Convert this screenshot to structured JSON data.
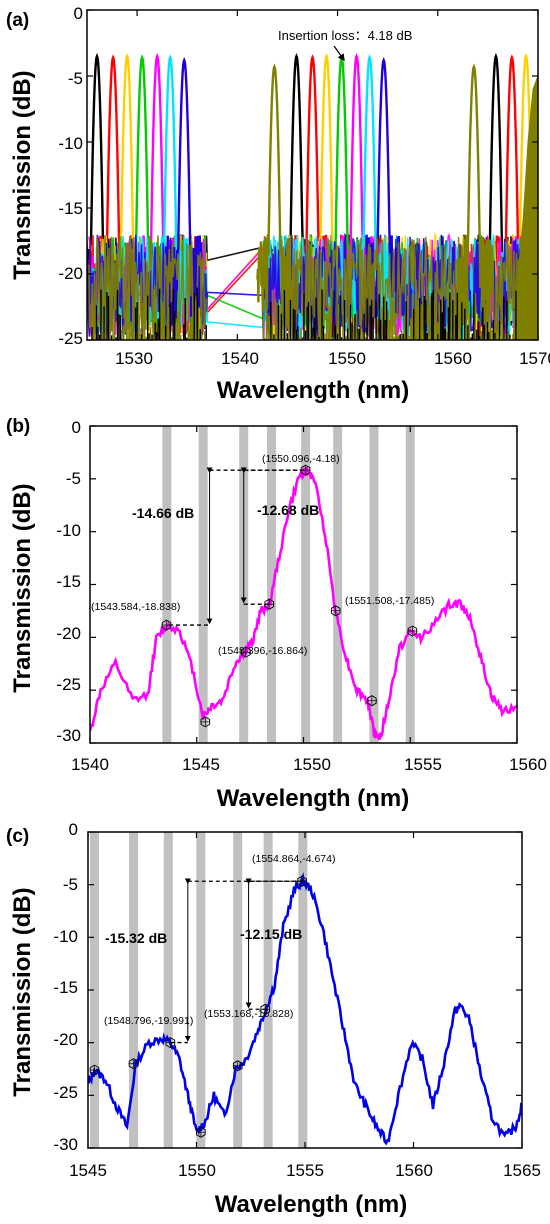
{
  "chart_data": [
    {
      "panel": "(a)",
      "type": "line",
      "xlabel": "Wavelength (nm)",
      "ylabel": "Transmission (dB)",
      "xlim": [
        1525,
        1570
      ],
      "ylim": [
        -25,
        0
      ],
      "xticks": [
        1530,
        1540,
        1550,
        1560,
        1570
      ],
      "yticks": [
        0,
        -5,
        -10,
        -15,
        -20,
        -25
      ],
      "annotation": "Insertion loss：4.18 dB",
      "annotation_point": [
        1549.3,
        -3.8
      ],
      "series": [
        {
          "color": "#000000",
          "centers": [
            1526.0,
            1545.9,
            1565.8
          ],
          "peak": -3.5
        },
        {
          "color": "#ff0000",
          "centers": [
            1527.6,
            1547.5,
            1567.4
          ],
          "peak": -3.6
        },
        {
          "color": "#ffd000",
          "centers": [
            1529.0,
            1548.9,
            1568.8
          ],
          "peak": -3.5
        },
        {
          "color": "#00cc00",
          "centers": [
            1530.5,
            1550.4
          ],
          "peak": -3.6
        },
        {
          "color": "#ff00ff",
          "centers": [
            1532.0,
            1551.9
          ],
          "peak": -3.5
        },
        {
          "color": "#00e5ff",
          "centers": [
            1533.3,
            1553.2
          ],
          "peak": -3.6
        },
        {
          "color": "#2200dd",
          "centers": [
            1534.7,
            1554.6
          ],
          "peak": -3.8
        },
        {
          "color": "#808000",
          "centers": [
            1543.7,
            1563.6
          ],
          "peak": -4.3
        }
      ]
    },
    {
      "panel": "(b)",
      "type": "line",
      "xlabel": "Wavelength (nm)",
      "ylabel": "Transmission (dB)",
      "xlim": [
        1540,
        1560
      ],
      "ylim": [
        -30,
        0
      ],
      "xticks": [
        1540,
        1545,
        1550,
        1555,
        1560
      ],
      "yticks": [
        0,
        -5,
        -10,
        -15,
        -20,
        -25,
        -30
      ],
      "line_color": "#ff00ff",
      "shaded_bands": [
        1543.6,
        1545.3,
        1547.2,
        1548.5,
        1550.1,
        1551.6,
        1553.3,
        1555.0
      ],
      "curve": [
        [
          1540,
          -29
        ],
        [
          1540.5,
          -25
        ],
        [
          1541.2,
          -22.5
        ],
        [
          1542.0,
          -26
        ],
        [
          1542.7,
          -25.5
        ],
        [
          1543.1,
          -20.2
        ],
        [
          1543.6,
          -18.9
        ],
        [
          1544.2,
          -19.3
        ],
        [
          1544.8,
          -23
        ],
        [
          1545.3,
          -27.5
        ],
        [
          1545.7,
          -26.5
        ],
        [
          1546.2,
          -26
        ],
        [
          1546.8,
          -22.5
        ],
        [
          1547.2,
          -21.5
        ],
        [
          1547.6,
          -20.5
        ],
        [
          1548.0,
          -17.5
        ],
        [
          1548.4,
          -16.9
        ],
        [
          1548.8,
          -13
        ],
        [
          1549.3,
          -8
        ],
        [
          1549.8,
          -4.8
        ],
        [
          1550.1,
          -4.18
        ],
        [
          1550.5,
          -5
        ],
        [
          1551.0,
          -10
        ],
        [
          1551.5,
          -17.5
        ],
        [
          1552.0,
          -22
        ],
        [
          1552.5,
          -25
        ],
        [
          1553.0,
          -26
        ],
        [
          1553.3,
          -29
        ],
        [
          1553.6,
          -29.5
        ],
        [
          1554.0,
          -26
        ],
        [
          1554.5,
          -21
        ],
        [
          1555.0,
          -19.5
        ],
        [
          1555.5,
          -20
        ],
        [
          1556.2,
          -18.5
        ],
        [
          1556.8,
          -17
        ],
        [
          1557.3,
          -16.8
        ],
        [
          1557.8,
          -18
        ],
        [
          1558.3,
          -22
        ],
        [
          1558.8,
          -25.5
        ],
        [
          1559.3,
          -27
        ],
        [
          1560,
          -26.5
        ]
      ],
      "markers": [
        [
          1543.584,
          -18.838
        ],
        [
          1545.4,
          -28
        ],
        [
          1547.3,
          -21.4
        ],
        [
          1548.396,
          -16.864
        ],
        [
          1550.096,
          -4.18
        ],
        [
          1551.508,
          -17.485
        ],
        [
          1553.2,
          -26
        ],
        [
          1555.1,
          -19.4
        ]
      ],
      "point_labels": [
        {
          "text": "(1550.096,-4.18)",
          "x": 1550.096,
          "y": -4.18
        },
        {
          "text": "(1543.584,-18.838)",
          "x": 1543.584,
          "y": -18.838
        },
        {
          "text": "(1548.396,-16.864)",
          "x": 1548.396,
          "y": -16.864
        },
        {
          "text": "(1551.508,-17.485)",
          "x": 1551.508,
          "y": -17.485
        }
      ],
      "dimension_labels": [
        {
          "text": "-14.66 dB",
          "from": -4.18,
          "to": -18.838,
          "at_x": 1546.2
        },
        {
          "text": "-12.68 dB",
          "from": -4.18,
          "to": -16.864,
          "at_x": 1547.6
        }
      ]
    },
    {
      "panel": "(c)",
      "type": "line",
      "xlabel": "Wavelength (nm)",
      "ylabel": "Transmission (dB)",
      "xlim": [
        1545,
        1565
      ],
      "ylim": [
        -30,
        0
      ],
      "xticks": [
        1545,
        1550,
        1555,
        1560,
        1565
      ],
      "yticks": [
        0,
        -5,
        -10,
        -15,
        -20,
        -25,
        -30
      ],
      "line_color": "#0000ee",
      "shaded_bands": [
        1545.3,
        1547.1,
        1548.7,
        1550.2,
        1551.9,
        1553.3,
        1554.9
      ],
      "curve": [
        [
          1545,
          -24
        ],
        [
          1545.3,
          -22.6
        ],
        [
          1545.8,
          -23.5
        ],
        [
          1546.3,
          -26
        ],
        [
          1546.8,
          -28
        ],
        [
          1547.2,
          -22
        ],
        [
          1547.8,
          -20
        ],
        [
          1548.4,
          -19.6
        ],
        [
          1548.8,
          -20
        ],
        [
          1549.2,
          -21.5
        ],
        [
          1549.6,
          -25
        ],
        [
          1550.0,
          -28.5
        ],
        [
          1550.4,
          -27.5
        ],
        [
          1550.8,
          -25
        ],
        [
          1551.3,
          -27
        ],
        [
          1551.8,
          -22.5
        ],
        [
          1552.3,
          -21.5
        ],
        [
          1552.8,
          -19
        ],
        [
          1553.2,
          -16.8
        ],
        [
          1553.6,
          -14.5
        ],
        [
          1554.0,
          -9
        ],
        [
          1554.5,
          -5.5
        ],
        [
          1554.9,
          -4.67
        ],
        [
          1555.3,
          -5.5
        ],
        [
          1555.8,
          -9
        ],
        [
          1556.3,
          -14
        ],
        [
          1556.8,
          -19
        ],
        [
          1557.3,
          -24
        ],
        [
          1557.8,
          -26
        ],
        [
          1558.3,
          -28
        ],
        [
          1558.8,
          -29.5
        ],
        [
          1559.3,
          -25
        ],
        [
          1559.9,
          -20
        ],
        [
          1560.4,
          -21.5
        ],
        [
          1560.9,
          -26
        ],
        [
          1561.4,
          -22
        ],
        [
          1561.9,
          -17
        ],
        [
          1562.2,
          -16.5
        ],
        [
          1562.6,
          -18
        ],
        [
          1563.1,
          -23
        ],
        [
          1563.6,
          -27
        ],
        [
          1564.2,
          -29
        ],
        [
          1564.7,
          -28
        ],
        [
          1565,
          -26
        ]
      ],
      "markers": [
        [
          1545.3,
          -22.6
        ],
        [
          1547.1,
          -22
        ],
        [
          1548.796,
          -19.991
        ],
        [
          1550.2,
          -28.5
        ],
        [
          1551.9,
          -22.2
        ],
        [
          1553.168,
          -16.828
        ],
        [
          1554.864,
          -4.674
        ]
      ],
      "point_labels": [
        {
          "text": "(1554.864,-4.674)",
          "x": 1554.864,
          "y": -4.674
        },
        {
          "text": "(1553.168,-16.828)",
          "x": 1553.168,
          "y": -16.828
        },
        {
          "text": "(1548.796,-19.991)",
          "x": 1548.796,
          "y": -19.991
        }
      ],
      "dimension_labels": [
        {
          "text": "-15.32 dB",
          "from": -4.674,
          "to": -19.991,
          "at_x": 1549.8
        },
        {
          "text": "-12.15 dB",
          "from": -4.674,
          "to": -16.828,
          "at_x": 1552.2
        }
      ]
    }
  ]
}
